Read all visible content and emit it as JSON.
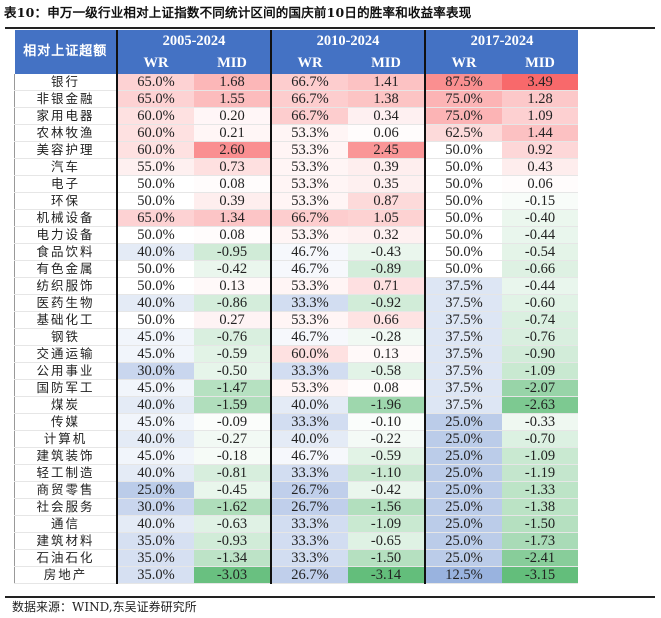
{
  "title": "表10：申万一级行业相对上证指数不同统计区间的国庆前10日的胜率和收益率表现",
  "header": {
    "corner": "相对上证超额",
    "periods": [
      "2005-2024",
      "2010-2024",
      "2017-2024"
    ],
    "sub": [
      "WR",
      "MID"
    ]
  },
  "colors": {
    "header": "#4472c4",
    "pos": "#f8696b",
    "neg": "#63be7b",
    "low_wr": "#8eaadb"
  },
  "rows": [
    [
      "银行",
      "65.0%",
      "1.68",
      "66.7%",
      "1.41",
      "87.5%",
      "3.49"
    ],
    [
      "非银金融",
      "65.0%",
      "1.55",
      "66.7%",
      "1.38",
      "75.0%",
      "1.28"
    ],
    [
      "家用电器",
      "60.0%",
      "0.20",
      "66.7%",
      "0.34",
      "75.0%",
      "1.09"
    ],
    [
      "农林牧渔",
      "60.0%",
      "0.21",
      "53.3%",
      "0.06",
      "62.5%",
      "1.44"
    ],
    [
      "美容护理",
      "60.0%",
      "2.60",
      "53.3%",
      "2.45",
      "50.0%",
      "0.92"
    ],
    [
      "汽车",
      "55.0%",
      "0.73",
      "53.3%",
      "0.39",
      "50.0%",
      "0.43"
    ],
    [
      "电子",
      "50.0%",
      "0.08",
      "53.3%",
      "0.35",
      "50.0%",
      "0.06"
    ],
    [
      "环保",
      "50.0%",
      "0.39",
      "53.3%",
      "0.87",
      "50.0%",
      "-0.15"
    ],
    [
      "机械设备",
      "65.0%",
      "1.34",
      "66.7%",
      "1.05",
      "50.0%",
      "-0.40"
    ],
    [
      "电力设备",
      "50.0%",
      "0.08",
      "53.3%",
      "0.32",
      "50.0%",
      "-0.44"
    ],
    [
      "食品饮料",
      "40.0%",
      "-0.95",
      "46.7%",
      "-0.43",
      "50.0%",
      "-0.54"
    ],
    [
      "有色金属",
      "50.0%",
      "-0.42",
      "46.7%",
      "-0.89",
      "50.0%",
      "-0.66"
    ],
    [
      "纺织服饰",
      "50.0%",
      "0.13",
      "53.3%",
      "0.71",
      "37.5%",
      "-0.44"
    ],
    [
      "医药生物",
      "40.0%",
      "-0.86",
      "33.3%",
      "-0.92",
      "37.5%",
      "-0.60"
    ],
    [
      "基础化工",
      "50.0%",
      "0.27",
      "53.3%",
      "0.66",
      "37.5%",
      "-0.74"
    ],
    [
      "钢铁",
      "45.0%",
      "-0.76",
      "46.7%",
      "-0.28",
      "37.5%",
      "-0.76"
    ],
    [
      "交通运输",
      "45.0%",
      "-0.59",
      "60.0%",
      "0.13",
      "37.5%",
      "-0.90"
    ],
    [
      "公用事业",
      "30.0%",
      "-0.50",
      "33.3%",
      "-0.58",
      "37.5%",
      "-1.09"
    ],
    [
      "国防军工",
      "45.0%",
      "-1.47",
      "53.3%",
      "0.08",
      "37.5%",
      "-2.07"
    ],
    [
      "煤炭",
      "40.0%",
      "-1.59",
      "40.0%",
      "-1.96",
      "37.5%",
      "-2.63"
    ],
    [
      "传媒",
      "45.0%",
      "-0.09",
      "33.3%",
      "-0.10",
      "25.0%",
      "-0.33"
    ],
    [
      "计算机",
      "40.0%",
      "-0.27",
      "40.0%",
      "-0.22",
      "25.0%",
      "-0.70"
    ],
    [
      "建筑装饰",
      "45.0%",
      "-0.18",
      "46.7%",
      "-0.59",
      "25.0%",
      "-1.09"
    ],
    [
      "轻工制造",
      "40.0%",
      "-0.81",
      "33.3%",
      "-1.10",
      "25.0%",
      "-1.19"
    ],
    [
      "商贸零售",
      "25.0%",
      "-0.45",
      "26.7%",
      "-0.42",
      "25.0%",
      "-1.33"
    ],
    [
      "社会服务",
      "30.0%",
      "-1.62",
      "26.7%",
      "-1.56",
      "25.0%",
      "-1.38"
    ],
    [
      "通信",
      "40.0%",
      "-0.63",
      "33.3%",
      "-1.09",
      "25.0%",
      "-1.50"
    ],
    [
      "建筑材料",
      "35.0%",
      "-0.93",
      "33.3%",
      "-0.65",
      "25.0%",
      "-1.73"
    ],
    [
      "石油石化",
      "35.0%",
      "-1.34",
      "33.3%",
      "-1.50",
      "25.0%",
      "-2.41"
    ],
    [
      "房地产",
      "35.0%",
      "-3.03",
      "26.7%",
      "-3.14",
      "12.5%",
      "-3.15"
    ]
  ],
  "footer": "数据来源：WIND,东吴证券研究所"
}
